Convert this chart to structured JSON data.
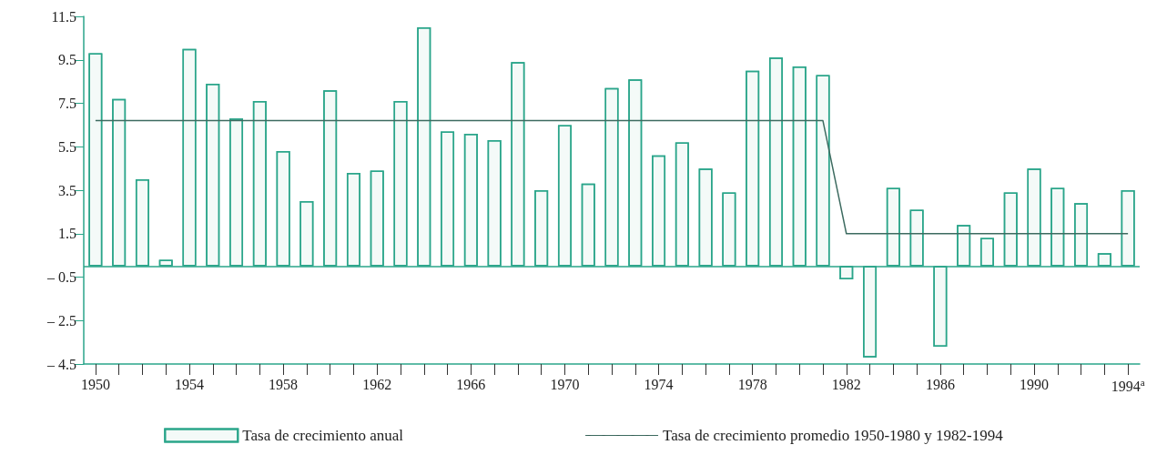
{
  "chart_data": {
    "type": "bar",
    "categories": [
      "1950",
      null,
      null,
      null,
      "1954",
      null,
      null,
      null,
      "1958",
      null,
      null,
      null,
      "1962",
      null,
      null,
      null,
      "1966",
      null,
      null,
      null,
      "1970",
      null,
      null,
      null,
      "1974",
      null,
      null,
      null,
      "1978",
      null,
      null,
      null,
      "1982",
      null,
      null,
      null,
      "1986",
      null,
      null,
      null,
      "1990",
      null,
      null,
      null,
      "1994$^{a}$"
    ],
    "series": [
      {
        "name": "Tasa de crecimiento anual",
        "color": "#2aa58a",
        "values": [
          9.8,
          7.7,
          4.0,
          0.3,
          10.0,
          8.4,
          6.8,
          7.6,
          5.3,
          3.0,
          8.1,
          4.3,
          4.4,
          7.6,
          11.0,
          6.2,
          6.1,
          5.8,
          9.4,
          3.5,
          6.5,
          3.8,
          8.2,
          8.6,
          5.1,
          5.7,
          4.5,
          3.4,
          9.0,
          9.6,
          9.2,
          8.8,
          -0.6,
          -4.2,
          3.6,
          2.6,
          -3.7,
          1.9,
          1.3,
          3.4,
          4.5,
          3.6,
          2.9,
          0.6,
          3.5
        ]
      },
      {
        "name": "Tasa de crecimiento promedio 1950-1980 y 1982-1994",
        "type": "line",
        "color": "#3d6b60",
        "values": [
          6.7,
          6.7,
          6.7,
          6.7,
          6.7,
          6.7,
          6.7,
          6.7,
          6.7,
          6.7,
          6.7,
          6.7,
          6.7,
          6.7,
          6.7,
          6.7,
          6.7,
          6.7,
          6.7,
          6.7,
          6.7,
          6.7,
          6.7,
          6.7,
          6.7,
          6.7,
          6.7,
          6.7,
          6.7,
          6.7,
          6.7,
          6.7,
          1.5,
          1.5,
          1.5,
          1.5,
          1.5,
          1.5,
          1.5,
          1.5,
          1.5,
          1.5,
          1.5,
          1.5,
          1.5
        ]
      }
    ],
    "ylim": [
      -4.5,
      11.5
    ],
    "yticks": [
      {
        "value": -4.5,
        "label": "– 4.5"
      },
      {
        "value": -2.5,
        "label": "– 2.5"
      },
      {
        "value": -0.5,
        "label": "– 0.5"
      },
      1.5,
      3.5,
      5.5,
      7.5,
      9.5,
      11.5
    ],
    "ref_lines": [
      {
        "axis": "y",
        "value": 0,
        "color": "#2aa58a"
      }
    ],
    "grid": false,
    "legend": "bottom",
    "marker": "none",
    "line_style": "solid"
  }
}
